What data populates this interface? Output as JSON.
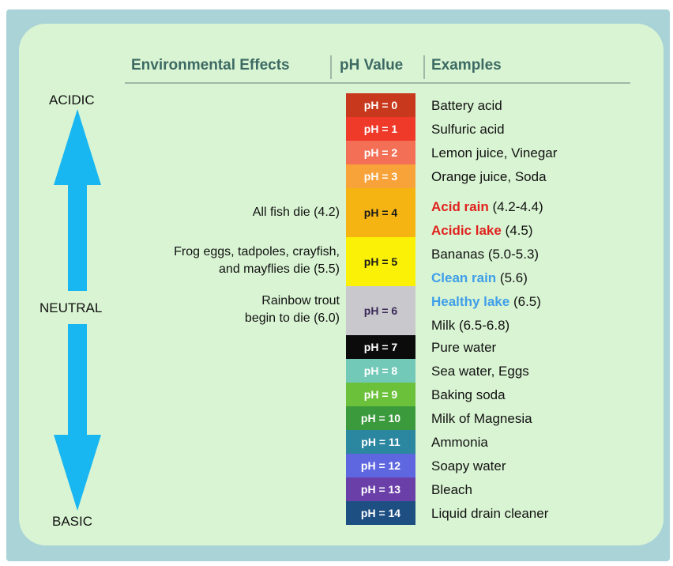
{
  "headers": {
    "effects": "Environmental Effects",
    "ph": "pH Value",
    "examples": "Examples"
  },
  "scale_labels": {
    "acidic": "ACIDIC",
    "neutral": "NEUTRAL",
    "basic": "BASIC"
  },
  "arrow_color": "#19b7f1",
  "ph_scale": [
    {
      "label": "pH = 0",
      "bg": "#c8381c",
      "fg": "#ffffff"
    },
    {
      "label": "pH = 1",
      "bg": "#ef3a2a",
      "fg": "#ffffff"
    },
    {
      "label": "pH = 2",
      "bg": "#f37057",
      "fg": "#ffffff"
    },
    {
      "label": "pH = 3",
      "bg": "#f8a23a",
      "fg": "#ffffff"
    },
    {
      "label": "pH = 4",
      "bg": "#f6b413",
      "fg": "#1a1a1a"
    },
    {
      "label": "pH = 5",
      "bg": "#fbf106",
      "fg": "#1a1a1a"
    },
    {
      "label": "pH = 6",
      "bg": "#c9c8cc",
      "fg": "#3a2a5a"
    },
    {
      "label": "pH = 7",
      "bg": "#0b0b0b",
      "fg": "#ffffff"
    },
    {
      "label": "pH = 8",
      "bg": "#73c9b8",
      "fg": "#ffffff"
    },
    {
      "label": "pH = 9",
      "bg": "#6cc13a",
      "fg": "#ffffff"
    },
    {
      "label": "pH = 10",
      "bg": "#3b9a3c",
      "fg": "#ffffff"
    },
    {
      "label": "pH = 11",
      "bg": "#2b86a0",
      "fg": "#ffffff"
    },
    {
      "label": "pH = 12",
      "bg": "#5e66e0",
      "fg": "#ffffff"
    },
    {
      "label": "pH = 13",
      "bg": "#6a3fa8",
      "fg": "#ffffff"
    },
    {
      "label": "pH = 14",
      "bg": "#1d4f82",
      "fg": "#ffffff"
    }
  ],
  "effects": [
    {
      "text": "All fish die (4.2)"
    },
    {
      "line1": "Frog eggs, tadpoles, crayfish,",
      "line2": "and mayflies die (5.5)"
    },
    {
      "line1": "Rainbow trout",
      "line2": "begin to die (6.0)"
    }
  ],
  "examples": [
    {
      "name": "Battery acid",
      "value": ""
    },
    {
      "name": "Sulfuric acid",
      "value": ""
    },
    {
      "name": "Lemon juice, Vinegar",
      "value": ""
    },
    {
      "name": "Orange juice, Soda",
      "value": ""
    },
    {
      "name": "Acid rain",
      "value": " (4.2-4.4)",
      "color": "#e0211d"
    },
    {
      "name": "Acidic lake",
      "value": " (4.5)",
      "color": "#e0211d"
    },
    {
      "name": "Bananas (5.0-5.3)",
      "value": ""
    },
    {
      "name": "Clean rain",
      "value": " (5.6)",
      "color": "#3e9ee8"
    },
    {
      "name": "Healthy lake",
      "value": " (6.5)",
      "color": "#3e9ee8"
    },
    {
      "name": "Milk (6.5-6.8)",
      "value": ""
    },
    {
      "name": "Pure water",
      "value": ""
    },
    {
      "name": "Sea water, Eggs",
      "value": ""
    },
    {
      "name": "Baking soda",
      "value": ""
    },
    {
      "name": "Milk of Magnesia",
      "value": ""
    },
    {
      "name": "Ammonia",
      "value": ""
    },
    {
      "name": "Soapy water",
      "value": ""
    },
    {
      "name": "Bleach",
      "value": ""
    },
    {
      "name": "Liquid drain cleaner",
      "value": ""
    }
  ]
}
